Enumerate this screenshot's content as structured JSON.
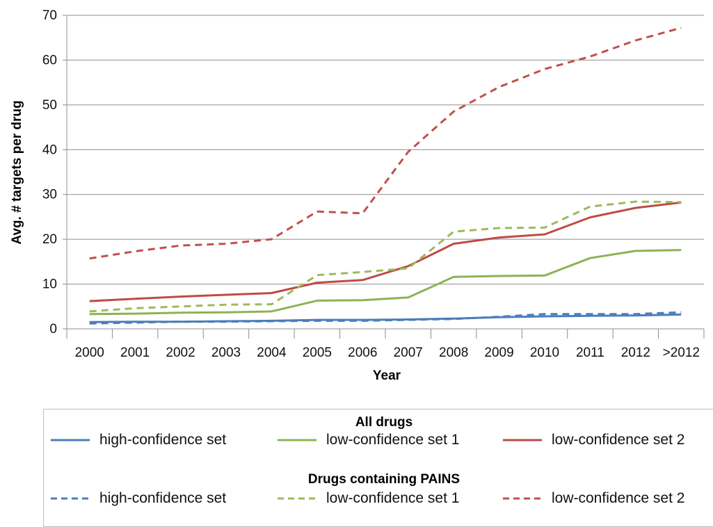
{
  "chart_data": {
    "type": "line",
    "xlabel": "Year",
    "ylabel": "Avg. # targets per drug",
    "categories": [
      "2000",
      "2001",
      "2002",
      "2003",
      "2004",
      "2005",
      "2006",
      "2007",
      "2008",
      "2009",
      "2010",
      "2011",
      "2012",
      ">2012"
    ],
    "ylim": [
      0,
      70
    ],
    "yticks": [
      0,
      10,
      20,
      30,
      40,
      50,
      60,
      70
    ],
    "grid": true,
    "series": [
      {
        "name": "high-confidence set",
        "group": "all",
        "color": "#4a7ebb",
        "dash": false,
        "values": [
          1.5,
          1.6,
          1.6,
          1.7,
          1.8,
          2.0,
          2.0,
          2.1,
          2.3,
          2.6,
          2.8,
          2.9,
          3.0,
          3.2
        ]
      },
      {
        "name": "low-confidence set 1",
        "group": "all",
        "color": "#8db255",
        "dash": false,
        "values": [
          3.3,
          3.4,
          3.6,
          3.7,
          3.9,
          6.3,
          6.4,
          7.0,
          11.6,
          11.8,
          11.9,
          15.8,
          17.4,
          17.6
        ]
      },
      {
        "name": "low-confidence set 2",
        "group": "all",
        "color": "#be4b48",
        "dash": false,
        "values": [
          6.2,
          6.7,
          7.2,
          7.6,
          8.0,
          10.3,
          10.9,
          14.0,
          19.0,
          20.4,
          21.1,
          24.9,
          27.0,
          28.2
        ]
      },
      {
        "name": "high-confidence set",
        "group": "pains",
        "color": "#4a7ebb",
        "dash": true,
        "values": [
          1.2,
          1.4,
          1.6,
          1.6,
          1.7,
          1.8,
          1.8,
          2.0,
          2.2,
          2.7,
          3.3,
          3.3,
          3.3,
          3.7
        ]
      },
      {
        "name": "low-confidence set 1",
        "group": "pains",
        "color": "#9bbb59",
        "dash": true,
        "values": [
          3.9,
          4.6,
          5.0,
          5.4,
          5.5,
          12.0,
          12.7,
          13.5,
          21.7,
          22.5,
          22.6,
          27.3,
          28.4,
          28.3
        ]
      },
      {
        "name": "low-confidence set 2",
        "group": "pains",
        "color": "#c0504d",
        "dash": true,
        "values": [
          15.7,
          17.3,
          18.6,
          19.0,
          20.0,
          26.2,
          25.8,
          39.5,
          48.5,
          54.0,
          58.0,
          60.8,
          64.4,
          67.2
        ]
      }
    ]
  },
  "legend": {
    "group_all_title": "All drugs",
    "group_pains_title": "Drugs containing PAINS",
    "labels": [
      "high-confidence set",
      "low-confidence set 1",
      "low-confidence set 2"
    ]
  }
}
